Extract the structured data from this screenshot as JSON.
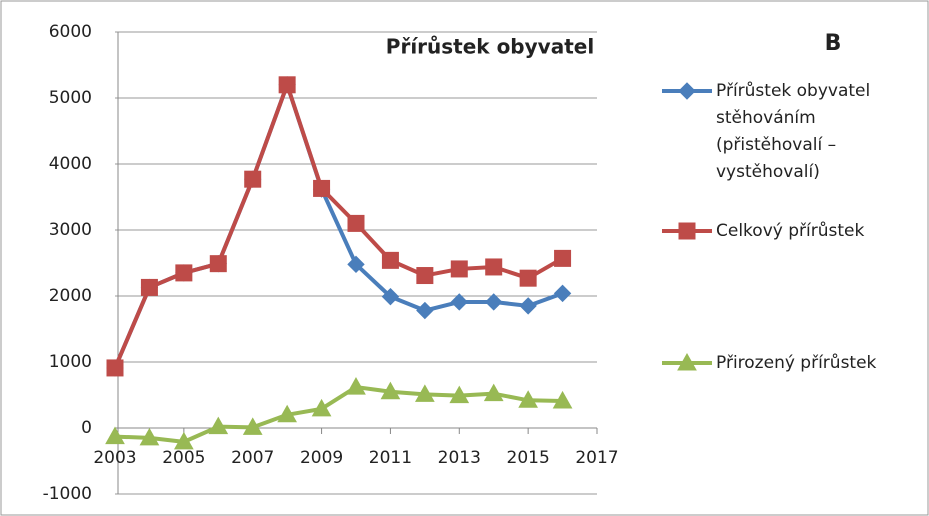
{
  "chart_data": {
    "type": "line",
    "title": "Přírůstek obyvatel",
    "annotation": "B",
    "x": [
      2003,
      2004,
      2005,
      2006,
      2007,
      2008,
      2009,
      2010,
      2011,
      2012,
      2013,
      2014,
      2015,
      2016
    ],
    "series": [
      {
        "name": "Přírůstek obyvatel stěhováním (přistěhovalí – vystěhovalí)",
        "color": "#4a7ebb",
        "marker": "diamond",
        "values": [
          910,
          2130,
          2350,
          2490,
          3770,
          5200,
          3620,
          2480,
          1990,
          1780,
          1910,
          1910,
          1850,
          2040
        ]
      },
      {
        "name": "Celkový přírůstek",
        "color": "#be4b48",
        "marker": "square",
        "values": [
          910,
          2130,
          2350,
          2490,
          3770,
          5200,
          3630,
          3100,
          2540,
          2310,
          2410,
          2440,
          2270,
          2570
        ]
      },
      {
        "name": "Přirozený přírůstek",
        "color": "#98b954",
        "marker": "triangle",
        "values": [
          -130,
          -150,
          -210,
          20,
          10,
          200,
          290,
          620,
          550,
          510,
          490,
          520,
          420,
          410
        ]
      }
    ],
    "xlim": [
      2003,
      2017
    ],
    "xticks": [
      2003,
      2005,
      2007,
      2009,
      2011,
      2013,
      2015,
      2017
    ],
    "ylim": [
      -1000,
      6000
    ],
    "yticks": [
      -1000,
      0,
      1000,
      2000,
      3000,
      4000,
      5000,
      6000
    ],
    "grid": true,
    "legend": "right"
  }
}
